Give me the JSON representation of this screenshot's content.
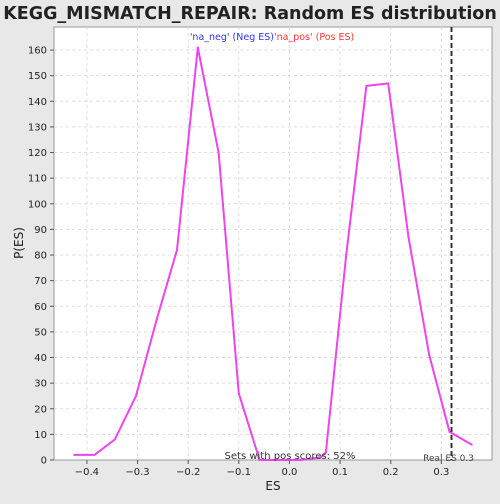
{
  "chart_data": {
    "type": "line",
    "title": "KEGG_MISMATCH_REPAIR: Random ES distribution",
    "xlabel": "ES",
    "ylabel": "P(ES)",
    "xlim": [
      -0.465,
      0.4
    ],
    "ylim": [
      0,
      169
    ],
    "x_ticks": [
      -0.4,
      -0.3,
      -0.2,
      -0.1,
      0.0,
      0.1,
      0.2,
      0.3
    ],
    "x_tick_labels": [
      "−0.4",
      "−0.3",
      "−0.2",
      "−0.1",
      "0.0",
      "0.1",
      "0.2",
      "0.3"
    ],
    "y_ticks": [
      0,
      10,
      20,
      30,
      40,
      50,
      60,
      70,
      80,
      90,
      100,
      110,
      120,
      130,
      140,
      150,
      160
    ],
    "grid": true,
    "legend": {
      "neg_label": "'na_neg' (Neg ES)",
      "pos_label": "'na_pos' (Pos ES)",
      "neg_color": "#3333ff",
      "pos_color": "#ff3333",
      "placement": "top-center"
    },
    "series": [
      {
        "name": "Random ES distribution",
        "color": "#ee44ee",
        "x": [
          -0.425,
          -0.385,
          -0.345,
          -0.303,
          -0.262,
          -0.222,
          -0.181,
          -0.14,
          -0.1,
          -0.059,
          -0.018,
          0.022,
          0.062,
          0.072,
          0.112,
          0.152,
          0.195,
          0.235,
          0.276,
          0.316,
          0.36
        ],
        "y": [
          2,
          2,
          8,
          25,
          55,
          82,
          161,
          120,
          26,
          0,
          0,
          0,
          1,
          3,
          80,
          146,
          147,
          87,
          41,
          11,
          6
        ]
      }
    ],
    "real_es": {
      "value": 0.32,
      "label": "Real ES 0.3",
      "color": "#333333"
    },
    "annotation": "Sets with pos scores: 52%"
  }
}
